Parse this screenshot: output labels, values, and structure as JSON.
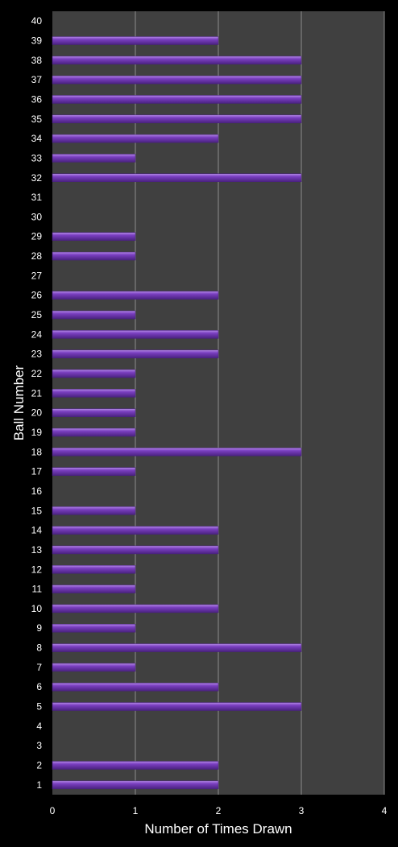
{
  "chart_data": {
    "type": "bar",
    "orientation": "horizontal",
    "categories": [
      "1",
      "2",
      "3",
      "4",
      "5",
      "6",
      "7",
      "8",
      "9",
      "10",
      "11",
      "12",
      "13",
      "14",
      "15",
      "16",
      "17",
      "18",
      "19",
      "20",
      "21",
      "22",
      "23",
      "24",
      "25",
      "26",
      "27",
      "28",
      "29",
      "30",
      "31",
      "32",
      "33",
      "34",
      "35",
      "36",
      "37",
      "38",
      "39",
      "40"
    ],
    "values": [
      2,
      2,
      0,
      0,
      3,
      2,
      1,
      3,
      1,
      2,
      1,
      1,
      2,
      2,
      1,
      0,
      1,
      3,
      1,
      1,
      1,
      1,
      2,
      2,
      1,
      2,
      0,
      1,
      1,
      0,
      0,
      3,
      1,
      2,
      3,
      3,
      3,
      3,
      2,
      0
    ],
    "title": "",
    "xlabel": "Number of Times Drawn",
    "ylabel": "Ball Number",
    "xlim": [
      0,
      4
    ],
    "xticks": [
      "0",
      "1",
      "2",
      "3",
      "4"
    ],
    "grid": "vertical",
    "legend": "none"
  },
  "colors": {
    "background": "#000000",
    "plot_area": "#404040",
    "gridline": "#8c8c8c",
    "bar": "#7a3fc0",
    "bar_highlight": "#b48ae6",
    "bar_shadow": "#4a2280",
    "text": "#ffffff"
  }
}
